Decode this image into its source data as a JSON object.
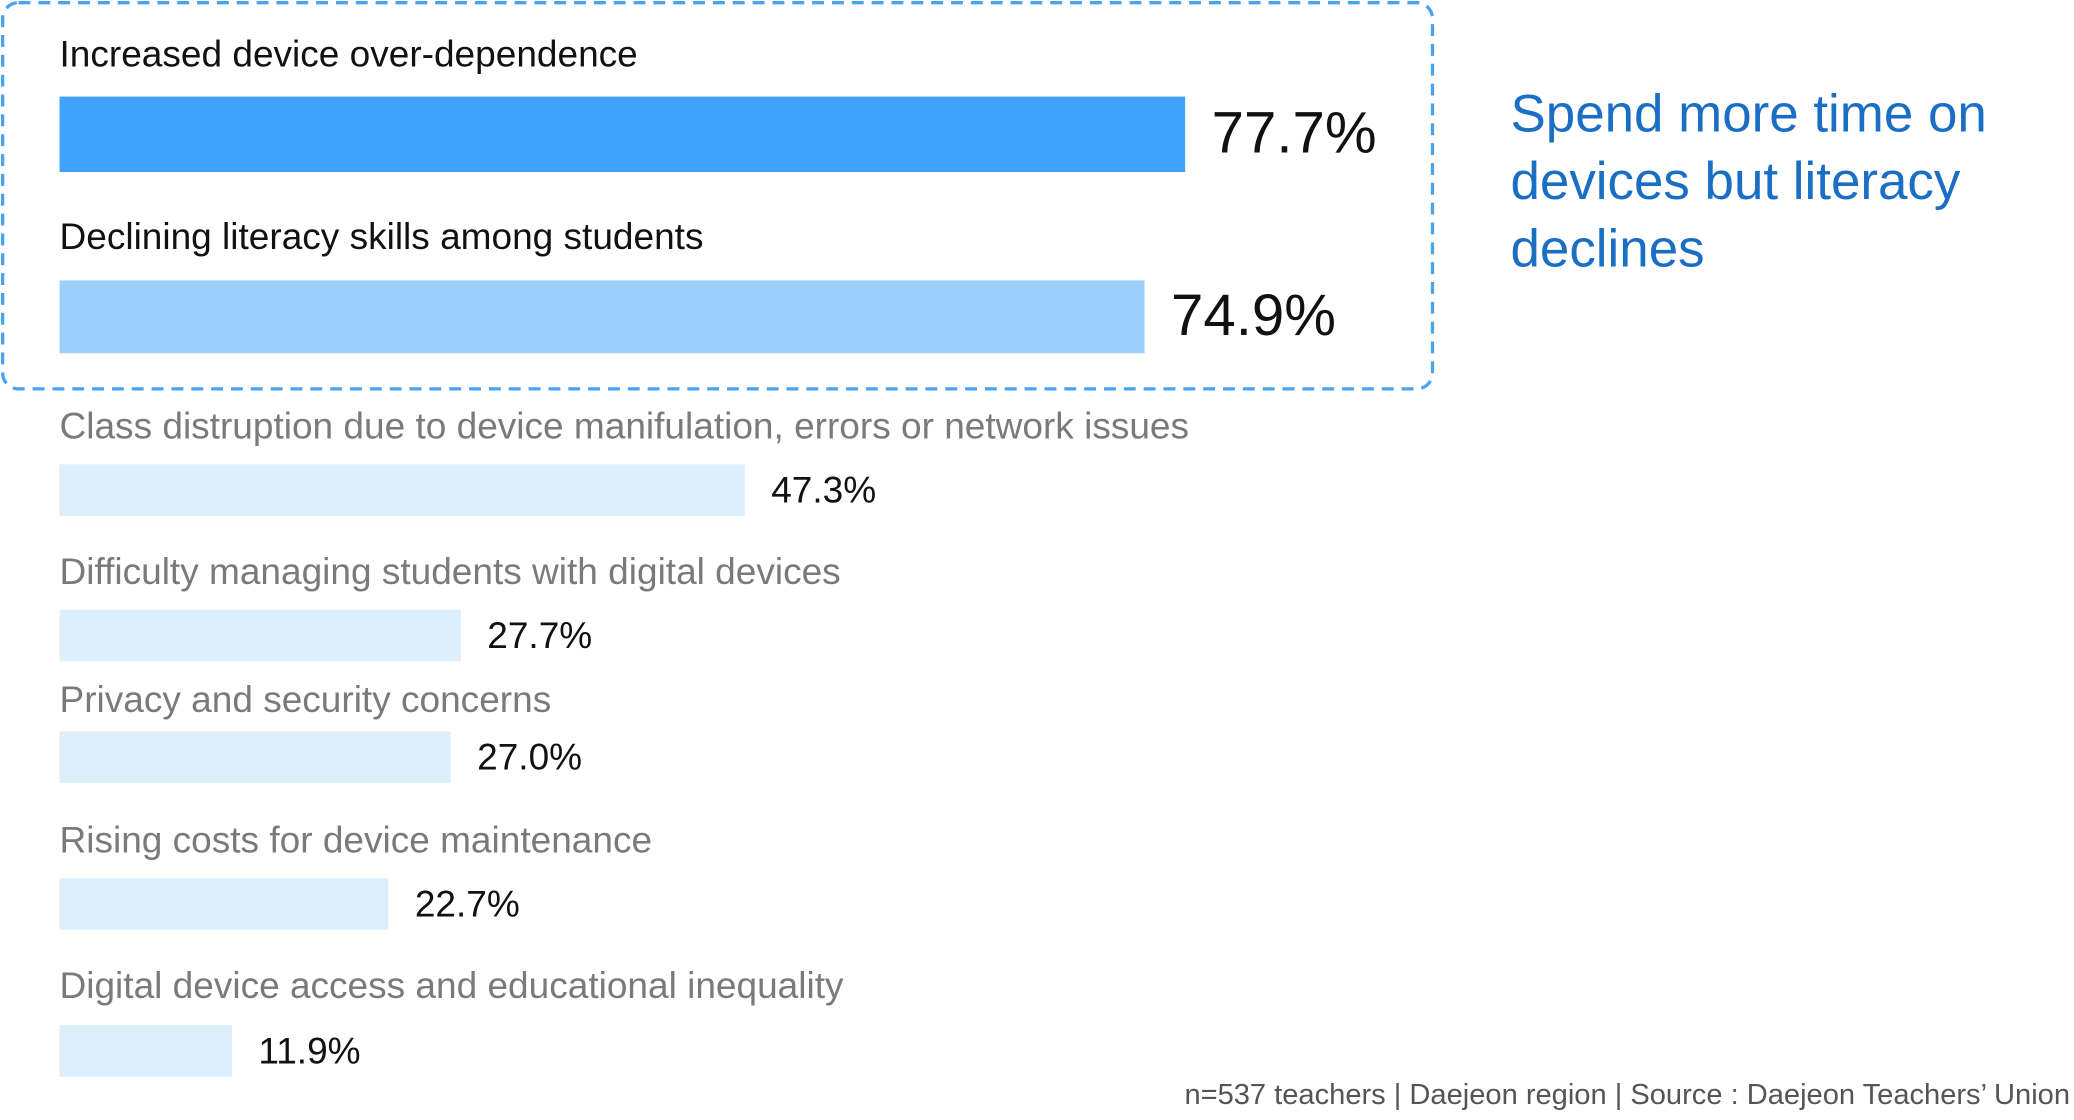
{
  "chart_data": {
    "type": "hbar",
    "categories": [
      "Increased device over-dependence",
      "Declining literacy skills among students",
      "Class distruption due to device manifulation, errors or network issues",
      "Difficulty managing students with digital devices",
      "Privacy and security concerns",
      "Rising costs for device maintenance",
      "Digital device access and educational inequality"
    ],
    "values": [
      77.7,
      74.9,
      47.3,
      27.7,
      27.0,
      22.7,
      11.9
    ],
    "value_labels": [
      "77.7%",
      "74.9%",
      "47.3%",
      "27.7%",
      "27.0%",
      "22.7%",
      "11.9%"
    ],
    "colors": [
      "#3fa2fb",
      "#9dcffc",
      "#ddeefc",
      "#ddeefc",
      "#ddeefc",
      "#ddeefc",
      "#ddeefc"
    ],
    "annotation_lines": [
      "Spend more time on",
      "devices but literacy",
      "declines"
    ],
    "note": "n=537 teachers | Daejeon region | Source : Daejeon Teachers’ Union"
  }
}
